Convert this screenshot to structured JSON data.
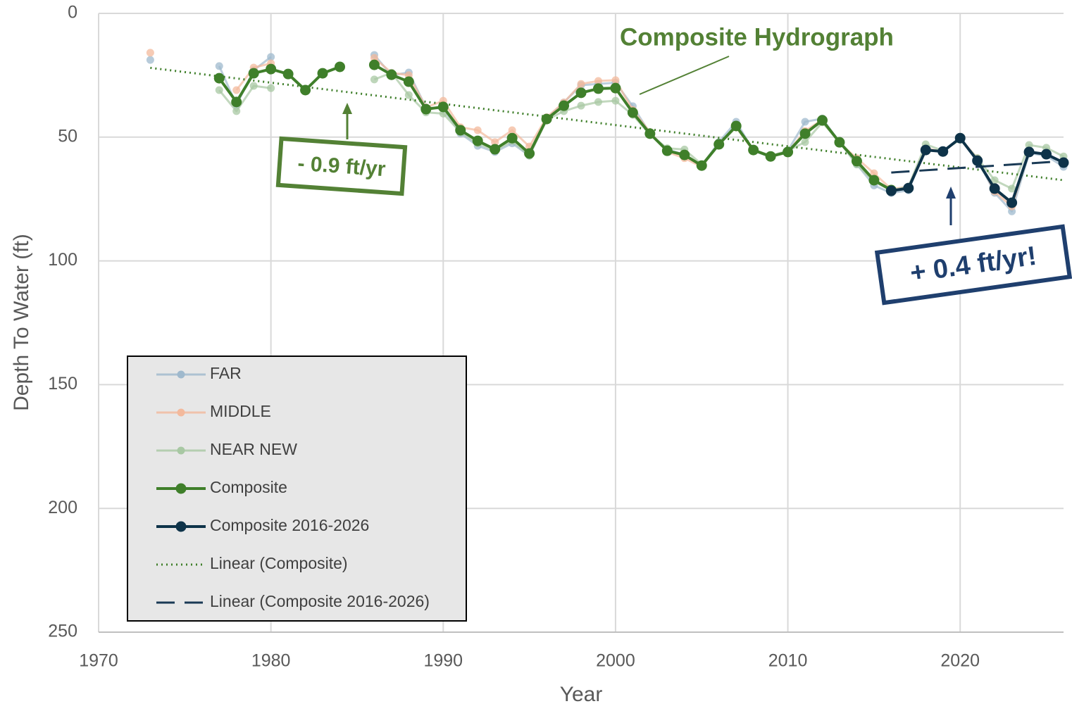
{
  "chart_data": {
    "type": "line",
    "x_label": "Year",
    "y_label": "Depth To Water (ft)",
    "xlim": [
      1970,
      2026
    ],
    "xticks": [
      1970,
      1980,
      1990,
      2000,
      2010,
      2020
    ],
    "ylim": [
      0,
      250
    ],
    "yticks": [
      0,
      50,
      100,
      150,
      200,
      250
    ],
    "y_reversed": true,
    "grid": true,
    "legend": "lower left",
    "x": [
      1973,
      1974,
      1975,
      1976,
      1977,
      1978,
      1979,
      1980,
      1981,
      1982,
      1983,
      1984,
      1985,
      1986,
      1987,
      1988,
      1989,
      1990,
      1991,
      1992,
      1993,
      1994,
      1995,
      1996,
      1997,
      1998,
      1999,
      2000,
      2001,
      2002,
      2003,
      2004,
      2005,
      2006,
      2007,
      2008,
      2009,
      2010,
      2011,
      2012,
      2013,
      2014,
      2015,
      2016,
      2017,
      2018,
      2019,
      2020,
      2021,
      2022,
      2023,
      2024,
      2025,
      2026
    ],
    "series": [
      {
        "name": "FAR",
        "color": "#9fb9cd",
        "values": [
          18.8,
          null,
          null,
          null,
          21.3,
          37,
          23,
          17.6,
          null,
          null,
          null,
          null,
          null,
          16.8,
          25,
          23.9,
          38,
          38.5,
          48.5,
          53.5,
          56,
          52.5,
          57.5,
          42.5,
          36,
          29,
          28.5,
          28,
          37.5,
          48.5,
          55,
          57,
          61.5,
          52,
          43.8,
          55.5,
          58,
          55.5,
          43.8,
          42.5,
          52,
          61,
          69.5,
          72.6,
          71.5,
          55,
          56,
          50.5,
          59,
          72.5,
          80,
          56.5,
          57.5,
          62
        ]
      },
      {
        "name": "MIDDLE",
        "color": "#f3b99c",
        "values": [
          15.9,
          null,
          null,
          null,
          null,
          31,
          21.9,
          20.2,
          null,
          null,
          null,
          null,
          null,
          18,
          24,
          25,
          38,
          35.3,
          46,
          47.2,
          52,
          47.2,
          53.8,
          42,
          36,
          28.5,
          27.3,
          27,
          39,
          48,
          56,
          58.5,
          62,
          52.5,
          46,
          55.5,
          57.5,
          56,
          47.5,
          43,
          52.5,
          58.5,
          64.6,
          71,
          70,
          54.5,
          56,
          50.5,
          58.5,
          72,
          78,
          56,
          57,
          60
        ]
      },
      {
        "name": "NEAR NEW",
        "color": "#a8c8a3",
        "values": [
          null,
          null,
          null,
          null,
          31,
          39.5,
          29.3,
          30.2,
          null,
          null,
          null,
          null,
          null,
          26.7,
          24,
          33,
          40,
          40.5,
          48,
          52.5,
          55.5,
          51.5,
          57.5,
          43,
          39.5,
          37.3,
          35.8,
          35.3,
          41,
          49,
          54.5,
          55,
          61,
          53,
          46,
          55,
          57.5,
          55.5,
          52,
          44,
          52,
          61,
          68,
          71.5,
          70,
          52.9,
          55.5,
          51,
          58.5,
          67.4,
          70.8,
          53.2,
          54.3,
          57.8
        ]
      },
      {
        "name": "Composite",
        "color": "#3f7f2a",
        "values": [
          null,
          null,
          null,
          null,
          26.2,
          35.8,
          24.2,
          22.5,
          24.5,
          31,
          24.2,
          21.6,
          null,
          20.8,
          24.8,
          27.6,
          38.7,
          37.8,
          47.2,
          51.5,
          54.9,
          50.4,
          56.6,
          42.7,
          37.3,
          32.1,
          30.4,
          30.2,
          40.1,
          48.6,
          55.5,
          57.2,
          61.5,
          52.9,
          45.5,
          55.2,
          57.8,
          56,
          48.6,
          43.2,
          52.1,
          59.7,
          67.4,
          71.4,
          null,
          null,
          null,
          null,
          null,
          null,
          null,
          null,
          null,
          null
        ]
      },
      {
        "name": "Composite 2016-2026",
        "color": "#0e3349",
        "values": [
          null,
          null,
          null,
          null,
          null,
          null,
          null,
          null,
          null,
          null,
          null,
          null,
          null,
          null,
          null,
          null,
          null,
          null,
          null,
          null,
          null,
          null,
          null,
          null,
          null,
          null,
          null,
          null,
          null,
          null,
          null,
          null,
          null,
          null,
          null,
          null,
          null,
          null,
          null,
          null,
          null,
          null,
          null,
          71.7,
          70.6,
          55.2,
          55.8,
          50.4,
          59.5,
          70.8,
          76.5,
          56,
          56.9,
          60.3
        ]
      }
    ],
    "trendlines": [
      {
        "name": "Linear (Composite)",
        "color": "#3f7f2a",
        "style": "dotted",
        "x": [
          1973,
          2026
        ],
        "values": [
          22,
          67.4
        ]
      },
      {
        "name": "Linear (Composite 2016-2026)",
        "color": "#1a3a55",
        "style": "dashed",
        "x": [
          2016,
          2026
        ],
        "values": [
          64.3,
          59.7
        ]
      }
    ],
    "annotations": [
      "Composite Hydrograph",
      "- 0.9 ft/yr",
      "+ 0.4 ft/yr!"
    ]
  }
}
